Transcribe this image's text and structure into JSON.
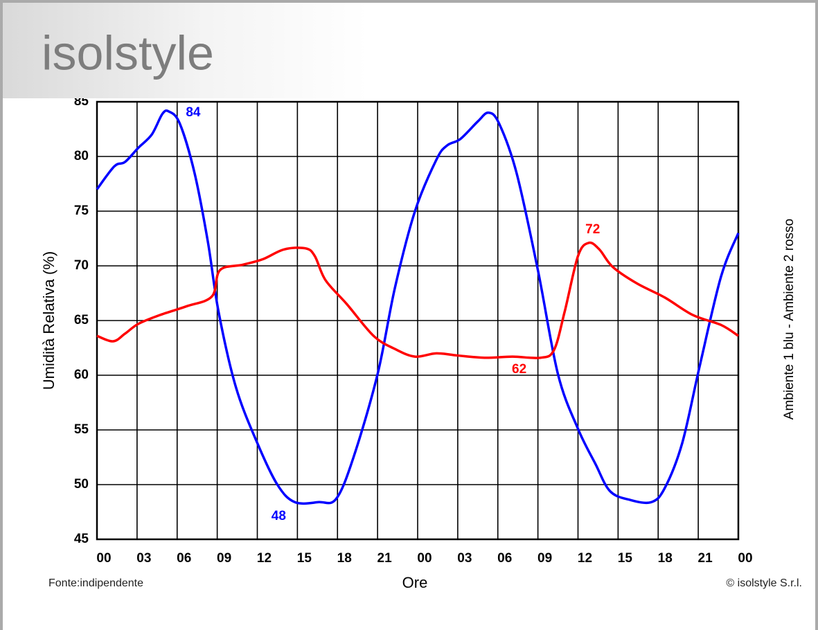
{
  "header": {
    "logo": "isolstyle"
  },
  "chart_data": {
    "type": "line",
    "y_label": "Umidità Relativa (%)",
    "x_label": "Ore",
    "right_label": "Ambiente 1 blu - Ambiente 2 rosso",
    "xlim": [
      0,
      48
    ],
    "xticks": [
      {
        "value": 0,
        "label": "00"
      },
      {
        "value": 3,
        "label": "03"
      },
      {
        "value": 6,
        "label": "06"
      },
      {
        "value": 9,
        "label": "09"
      },
      12,
      15,
      18,
      21,
      {
        "value": 24,
        "label": "00"
      },
      {
        "value": 27,
        "label": "03"
      },
      {
        "value": 30,
        "label": "06"
      },
      {
        "value": 33,
        "label": "09"
      },
      {
        "value": 36,
        "label": "12"
      },
      {
        "value": 39,
        "label": "15"
      },
      {
        "value": 42,
        "label": "18"
      },
      {
        "value": 45,
        "label": "21"
      },
      {
        "value": 48,
        "label": "00"
      }
    ],
    "ylim": [
      45,
      85
    ],
    "yticks": [
      45,
      50,
      55,
      60,
      65,
      70,
      75,
      80,
      85
    ],
    "grid": true,
    "series": [
      {
        "color": "#0000ff",
        "x": [
          0,
          1.3,
          2.1,
          3.1,
          4.1,
          4.9,
          5.4,
          6.2,
          7.3,
          8.3,
          9.1,
          10.4,
          12,
          13.5,
          14.8,
          16.6,
          17.9,
          19.2,
          21,
          22.3,
          23.8,
          25.4,
          26.2,
          27.2,
          28.5,
          29.3,
          30.1,
          31.4,
          33,
          34.5,
          36,
          37.3,
          38.4,
          39.9,
          41.5,
          42.5,
          43.8,
          45.1,
          46.7,
          48
        ],
        "values": [
          77,
          79.1,
          79.5,
          80.8,
          82,
          83.9,
          84.1,
          83,
          78.5,
          72.2,
          65.8,
          58.9,
          53.8,
          50,
          48.4,
          48.4,
          48.7,
          52.5,
          60.1,
          68,
          75,
          79.7,
          81,
          81.6,
          83.2,
          84,
          83,
          78.5,
          69.6,
          60.1,
          55.1,
          51.9,
          49.4,
          48.6,
          48.4,
          49.7,
          53.8,
          60.8,
          69,
          73
        ]
      },
      {
        "color": "#ff0000",
        "x": [
          0,
          1.2,
          2.1,
          3.1,
          4.7,
          6.7,
          8.6,
          9.2,
          10.9,
          12.4,
          14,
          15.6,
          16.3,
          17.1,
          18.7,
          20.7,
          22.3,
          23.8,
          25.4,
          27,
          29,
          31.1,
          33.2,
          34.2,
          35,
          36,
          36.8,
          37.6,
          38.6,
          40.4,
          42.5,
          44.6,
          46.7,
          48
        ],
        "values": [
          63.6,
          63.1,
          63.8,
          64.7,
          65.5,
          66.3,
          67.2,
          69.6,
          70.1,
          70.6,
          71.5,
          71.6,
          70.9,
          68.7,
          66.5,
          63.6,
          62.4,
          61.7,
          62,
          61.8,
          61.6,
          61.7,
          61.6,
          62.3,
          65.8,
          70.9,
          72.1,
          71.5,
          69.9,
          68.4,
          67.1,
          65.5,
          64.6,
          63.6
        ]
      }
    ],
    "annotations": [
      {
        "text": "84",
        "x": 7.2,
        "y": 84,
        "color": "#0000ff"
      },
      {
        "text": "48",
        "x": 13.6,
        "y": 47.1,
        "color": "#0000ff"
      },
      {
        "text": "62",
        "x": 31.6,
        "y": 60.5,
        "color": "#ff0000"
      },
      {
        "text": "72",
        "x": 37.1,
        "y": 73.3,
        "color": "#ff0000"
      }
    ]
  },
  "footer": {
    "source": "Fonte:indipendente",
    "copyright": "© isolstyle S.r.l."
  }
}
